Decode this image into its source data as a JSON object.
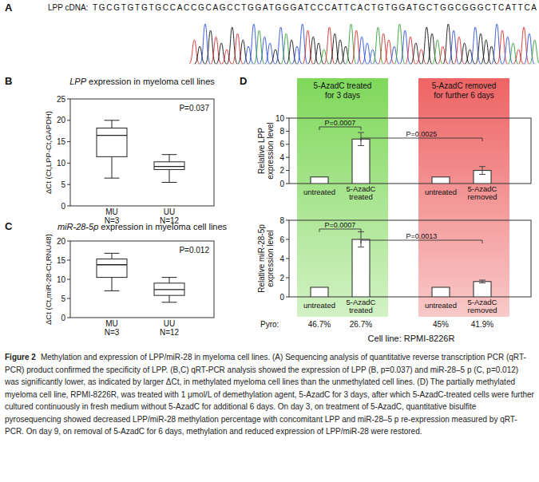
{
  "sequence": {
    "panel": "A",
    "label": "LPP cDNA:",
    "bases": "TGCGTGTGTGCCACCGCAGCCTGGATGGGATCCCATTCACTGTGGATGCTGGCGGGCTCATTCA"
  },
  "chart_data": [
    {
      "type": "box",
      "panel": "B",
      "title": "LPP expression in myeloma cell lines",
      "y_label": "ΔCt (Ct,LPP-Ct,GAPDH)",
      "categories": [
        "MU",
        "UU"
      ],
      "sample_sizes": [
        "N=3",
        "N=12"
      ],
      "boxes": [
        {
          "min": 6.5,
          "q1": 11.5,
          "median": 16.5,
          "q3": 18.2,
          "max": 20
        },
        {
          "min": 5.5,
          "q1": 8.5,
          "median": 9.2,
          "q3": 10.3,
          "max": 12
        }
      ],
      "ylim": [
        0,
        25
      ],
      "yticks": [
        0,
        5,
        10,
        15,
        20,
        25
      ],
      "annotation": "P=0.037",
      "color": "#ffffff"
    },
    {
      "type": "box",
      "panel": "C",
      "title": "miR-28-5p expression in myeloma cell lines",
      "y_label": "ΔCt (Ct,miR-28-Ct,RNU48)",
      "categories": [
        "MU",
        "UU"
      ],
      "sample_sizes": [
        "N=3",
        "N=12"
      ],
      "boxes": [
        {
          "min": 7,
          "q1": 10.5,
          "median": 13.8,
          "q3": 15.3,
          "max": 16.8
        },
        {
          "min": 4,
          "q1": 5.8,
          "median": 7.3,
          "q3": 9,
          "max": 10.5
        }
      ],
      "ylim": [
        0,
        20
      ],
      "yticks": [
        0,
        5,
        10,
        15,
        20
      ],
      "annotation": "P=0.012",
      "color": "#ffffff"
    },
    {
      "type": "bar",
      "panel": "D",
      "y_label": "Relative LPP expression level",
      "categories": [
        "untreated",
        "5-AzadC treated",
        "untreated",
        "5-AzadC removed"
      ],
      "values": [
        1,
        6.8,
        1,
        2.0
      ],
      "errors": [
        null,
        1.0,
        null,
        0.6
      ],
      "ylim": [
        0,
        10
      ],
      "yticks": [
        0,
        2,
        4,
        6,
        8,
        10
      ],
      "comparisons": [
        {
          "label": "P=0.0007",
          "from": 0,
          "to": 1
        },
        {
          "label": "P=0.0025",
          "from": 1,
          "to": 3
        }
      ],
      "color": "#ffffff"
    },
    {
      "type": "bar",
      "y_label": "Relative miR-28-5p expression level",
      "categories": [
        "untreated",
        "5-AzadC treated",
        "untreated",
        "5-AzadC removed"
      ],
      "values": [
        1,
        6.0,
        1,
        1.6
      ],
      "errors": [
        null,
        0.8,
        null,
        0.15
      ],
      "ylim": [
        0,
        8
      ],
      "yticks": [
        0,
        2,
        4,
        6,
        8
      ],
      "comparisons": [
        {
          "label": "P=0.0007",
          "from": 0,
          "to": 1
        },
        {
          "label": "P=0.0013",
          "from": 1,
          "to": 3
        }
      ],
      "color": "#ffffff"
    }
  ],
  "treatment_groups": [
    {
      "label": "5-AzadC treated for 3 days",
      "color": "#7fd85a"
    },
    {
      "label": "5-AzadC removed for further 6 days",
      "color": "#ee6464"
    }
  ],
  "pyro": {
    "label": "Pyro:",
    "values": [
      "46.7%",
      "26.7%",
      "45%",
      "41.9%"
    ]
  },
  "cell_line": "Cell line: RPMI-8226R",
  "caption": {
    "label": "Figure 2",
    "text": "Methylation and expression of LPP/miR-28 in myeloma cell lines. (A) Sequencing analysis of quantitative reverse transcription PCR (qRT-PCR) product confirmed the specificity of LPP. (B,C) qRT-PCR analysis showed the expression of LPP (B, p=0.037) and miR-28–5 p (C, p=0.012) was significantly lower, as indicated by larger ΔCt, in methylated myeloma cell lines than the unmethylated cell lines. (D) The partially methylated myeloma cell line, RPMI-8226R, was treated with 1 μmol/L of demethylation agent, 5-AzadC for 3 days, after which 5-AzadC-treated cells were further cultured continuously in fresh medium without 5-AzadC for additional 6 days. On day 3, on treatment of 5-AzadC, quantitative bisulfite pyrosequencing showed decreased LPP/miR-28 methylation percentage with concomitant LPP and miR-28–5 p re-expression measured by qRT-PCR. On day 9, on removal of 5-AzadC for 6 days, methylation and reduced expression of LPP/miR-28 were restored."
  }
}
